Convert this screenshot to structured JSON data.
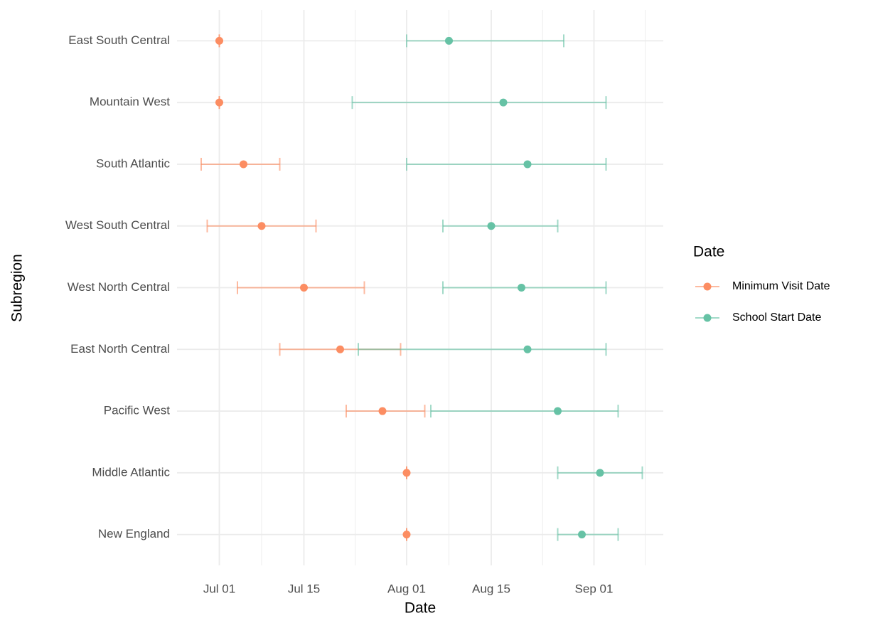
{
  "chart_data": {
    "type": "errorbar",
    "x_label": "Date",
    "y_label": "Subregion",
    "legend_title": "Date",
    "categories": [
      "East South Central",
      "Mountain West",
      "South Atlantic",
      "West South Central",
      "West North Central",
      "East North Central",
      "Pacific West",
      "Middle Atlantic",
      "New England"
    ],
    "series": [
      {
        "name": "Minimum Visit Date",
        "color": "#fc8d62",
        "values": [
          "Jul 01",
          "Jul 01",
          "Jul 05",
          "Jul 08",
          "Jul 15",
          "Jul 21",
          "Jul 28",
          "Aug 01",
          "Aug 01"
        ],
        "lows": [
          "Jul 01",
          "Jul 01",
          "Jun 28",
          "Jun 29",
          "Jul 04",
          "Jul 11",
          "Jul 22",
          "Aug 01",
          "Aug 01"
        ],
        "highs": [
          "Jul 01",
          "Jul 01",
          "Jul 11",
          "Jul 17",
          "Jul 25",
          "Jul 31",
          "Aug 04",
          "Aug 01",
          "Aug 01"
        ]
      },
      {
        "name": "School Start Date",
        "color": "#66c2a5",
        "values": [
          "Aug 08",
          "Aug 17",
          "Aug 21",
          "Aug 15",
          "Aug 20",
          "Aug 21",
          "Aug 26",
          "Sep 02",
          "Aug 30"
        ],
        "lows": [
          "Aug 01",
          "Jul 23",
          "Aug 01",
          "Aug 07",
          "Aug 07",
          "Jul 24",
          "Aug 05",
          "Aug 26",
          "Aug 26"
        ],
        "highs": [
          "Aug 27",
          "Sep 03",
          "Sep 03",
          "Aug 26",
          "Sep 03",
          "Sep 03",
          "Sep 05",
          "Sep 09",
          "Sep 05"
        ]
      }
    ],
    "xlim": [
      "Jun 24",
      "Sep 12"
    ],
    "xticks": [
      "Jul 01",
      "Jul 15",
      "Aug 01",
      "Aug 15",
      "Sep 01"
    ],
    "grid": true,
    "legend": "right"
  }
}
